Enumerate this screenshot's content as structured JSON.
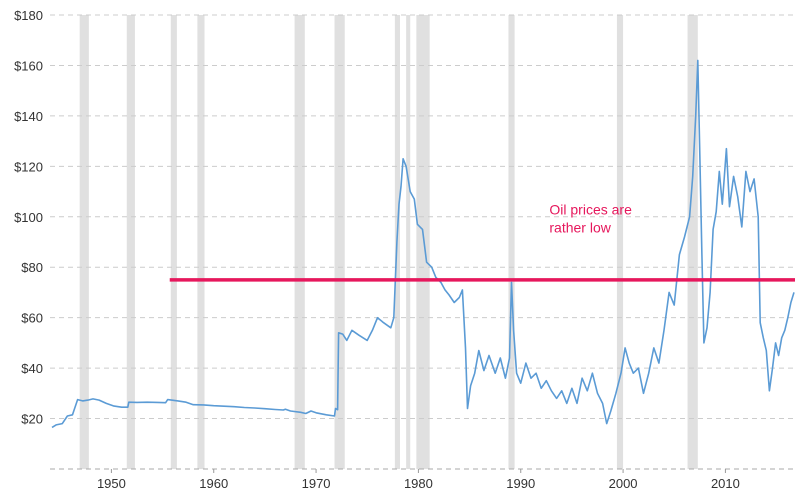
{
  "chart_data": {
    "type": "line",
    "title": "",
    "xlabel": "",
    "ylabel": "",
    "xlim": [
      1944,
      2016.8
    ],
    "ylim": [
      0,
      180
    ],
    "grid": true,
    "x_ticks": [
      "1950",
      "1960",
      "1970",
      "1980",
      "1990",
      "2000",
      "2010"
    ],
    "y_ticks": [
      "$20",
      "$40",
      "$60",
      "$80",
      "$100",
      "$120",
      "$140",
      "$160",
      "$180"
    ],
    "colors": {
      "line": "#5b9bd5",
      "threshold": "#e6175c",
      "recession": "#e0e0e0",
      "grid": "#cccccc"
    },
    "recessions": [
      [
        1946.9,
        1947.8
      ],
      [
        1951.5,
        1952.3
      ],
      [
        1955.8,
        1956.4
      ],
      [
        1958.4,
        1959.1
      ],
      [
        1967.9,
        1968.9
      ],
      [
        1971.8,
        1972.8
      ],
      [
        1977.7,
        1978.2
      ],
      [
        1978.8,
        1979.2
      ],
      [
        1979.8,
        1981.1
      ],
      [
        1988.8,
        1989.4
      ],
      [
        1999.4,
        2000.0
      ],
      [
        2006.3,
        2007.3
      ]
    ],
    "threshold": {
      "y": 75,
      "x_start": 1955.7,
      "x_end": 2016.8
    },
    "annotation": {
      "lines": [
        "Oil prices are",
        "rather low"
      ],
      "x": 1992.8,
      "y": 101
    },
    "series": [
      {
        "points": [
          [
            1944.2,
            16.5
          ],
          [
            1944.6,
            17.5
          ],
          [
            1945.2,
            18
          ],
          [
            1945.7,
            21
          ],
          [
            1946.2,
            21.5
          ],
          [
            1946.7,
            27.5
          ],
          [
            1947.2,
            27
          ],
          [
            1947.7,
            27.3
          ],
          [
            1948.2,
            27.8
          ],
          [
            1948.8,
            27.3
          ],
          [
            1949.5,
            26
          ],
          [
            1950.2,
            25
          ],
          [
            1951.0,
            24.5
          ],
          [
            1951.6,
            24.5
          ],
          [
            1951.7,
            26.5
          ],
          [
            1952.5,
            26.4
          ],
          [
            1953.5,
            26.5
          ],
          [
            1954.5,
            26.4
          ],
          [
            1955.3,
            26.3
          ],
          [
            1955.5,
            27.5
          ],
          [
            1956.5,
            27
          ],
          [
            1957.3,
            26.5
          ],
          [
            1958.0,
            25.5
          ],
          [
            1959.0,
            25.4
          ],
          [
            1960.0,
            25.1
          ],
          [
            1961.0,
            24.9
          ],
          [
            1962.0,
            24.7
          ],
          [
            1963.0,
            24.4
          ],
          [
            1964.0,
            24.2
          ],
          [
            1965.0,
            23.9
          ],
          [
            1966.0,
            23.6
          ],
          [
            1966.8,
            23.4
          ],
          [
            1967.0,
            23.7
          ],
          [
            1967.5,
            23
          ],
          [
            1968.5,
            22.5
          ],
          [
            1969.0,
            22
          ],
          [
            1969.5,
            23
          ],
          [
            1970.0,
            22.3
          ],
          [
            1971.0,
            21.5
          ],
          [
            1971.8,
            21
          ],
          [
            1971.9,
            24
          ],
          [
            1972.1,
            23.5
          ],
          [
            1972.2,
            54
          ],
          [
            1972.6,
            53.5
          ],
          [
            1973.0,
            51
          ],
          [
            1973.5,
            55
          ],
          [
            1974.2,
            53
          ],
          [
            1975.0,
            51
          ],
          [
            1975.5,
            55
          ],
          [
            1976.0,
            60
          ],
          [
            1976.6,
            58
          ],
          [
            1977.3,
            56
          ],
          [
            1977.6,
            60
          ],
          [
            1977.9,
            90
          ],
          [
            1978.1,
            105
          ],
          [
            1978.3,
            112
          ],
          [
            1978.5,
            123
          ],
          [
            1978.8,
            120
          ],
          [
            1979.2,
            110
          ],
          [
            1979.6,
            107
          ],
          [
            1979.9,
            97
          ],
          [
            1980.4,
            95
          ],
          [
            1980.8,
            82
          ],
          [
            1981.3,
            80
          ],
          [
            1981.7,
            76
          ],
          [
            1982.2,
            74
          ],
          [
            1982.6,
            71
          ],
          [
            1983.0,
            69
          ],
          [
            1983.5,
            66
          ],
          [
            1984.0,
            68
          ],
          [
            1984.3,
            71
          ],
          [
            1984.6,
            48
          ],
          [
            1984.8,
            24
          ],
          [
            1985.1,
            33
          ],
          [
            1985.5,
            38
          ],
          [
            1985.9,
            47
          ],
          [
            1986.4,
            39
          ],
          [
            1986.9,
            45
          ],
          [
            1987.5,
            38
          ],
          [
            1988.0,
            44
          ],
          [
            1988.5,
            36
          ],
          [
            1988.9,
            44
          ],
          [
            1989.1,
            74
          ],
          [
            1989.3,
            55
          ],
          [
            1989.6,
            38
          ],
          [
            1990.0,
            34
          ],
          [
            1990.5,
            42
          ],
          [
            1991.0,
            36
          ],
          [
            1991.5,
            38
          ],
          [
            1992.0,
            32
          ],
          [
            1992.5,
            35
          ],
          [
            1993.0,
            31
          ],
          [
            1993.5,
            28
          ],
          [
            1994.0,
            31
          ],
          [
            1994.5,
            26
          ],
          [
            1995.0,
            32
          ],
          [
            1995.5,
            26
          ],
          [
            1996.0,
            36
          ],
          [
            1996.5,
            31
          ],
          [
            1997.0,
            38
          ],
          [
            1997.5,
            30
          ],
          [
            1998.0,
            26
          ],
          [
            1998.4,
            18
          ],
          [
            1998.8,
            23
          ],
          [
            1999.3,
            30
          ],
          [
            1999.8,
            38
          ],
          [
            2000.2,
            48
          ],
          [
            2000.6,
            42
          ],
          [
            2001.0,
            38
          ],
          [
            2001.5,
            40
          ],
          [
            2002.0,
            30
          ],
          [
            2002.5,
            38
          ],
          [
            2003.0,
            48
          ],
          [
            2003.5,
            42
          ],
          [
            2004.0,
            55
          ],
          [
            2004.5,
            70
          ],
          [
            2005.0,
            65
          ],
          [
            2005.5,
            85
          ],
          [
            2006.0,
            92
          ],
          [
            2006.5,
            100
          ],
          [
            2006.8,
            116
          ],
          [
            2007.1,
            140
          ],
          [
            2007.3,
            162
          ],
          [
            2007.5,
            125
          ],
          [
            2007.7,
            85
          ],
          [
            2007.9,
            50
          ],
          [
            2008.2,
            56
          ],
          [
            2008.5,
            70
          ],
          [
            2008.8,
            95
          ],
          [
            2009.1,
            102
          ],
          [
            2009.4,
            118
          ],
          [
            2009.7,
            105
          ],
          [
            2010.1,
            127
          ],
          [
            2010.4,
            104
          ],
          [
            2010.8,
            116
          ],
          [
            2011.2,
            108
          ],
          [
            2011.6,
            96
          ],
          [
            2012.0,
            118
          ],
          [
            2012.4,
            110
          ],
          [
            2012.8,
            115
          ],
          [
            2013.2,
            100
          ],
          [
            2013.4,
            58
          ],
          [
            2013.7,
            52
          ],
          [
            2014.0,
            47
          ],
          [
            2014.3,
            31
          ],
          [
            2014.6,
            40
          ],
          [
            2014.9,
            50
          ],
          [
            2015.2,
            45
          ],
          [
            2015.5,
            52
          ],
          [
            2015.8,
            55
          ],
          [
            2016.1,
            60
          ],
          [
            2016.4,
            66
          ],
          [
            2016.7,
            70
          ]
        ]
      }
    ]
  }
}
